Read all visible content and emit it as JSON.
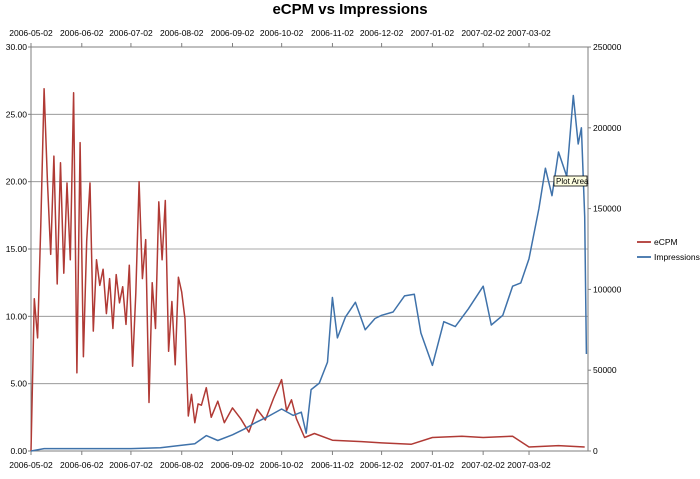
{
  "chart_data": {
    "type": "line",
    "title": "eCPM vs Impressions",
    "x_tick_labels": [
      "2006-05-02",
      "2006-06-02",
      "2006-07-02",
      "2006-08-02",
      "2006-09-02",
      "2006-10-02",
      "2006-11-02",
      "2006-12-02",
      "2007-01-02",
      "2007-02-02",
      "2007-03-02"
    ],
    "y_left": {
      "min": 0,
      "max": 30,
      "step": 5,
      "tick_labels": [
        "0.00",
        "5.00",
        "10.00",
        "15.00",
        "20.00",
        "25.00",
        "30.00"
      ]
    },
    "y_right": {
      "min": 0,
      "max": 250000,
      "step": 50000,
      "tick_labels": [
        "0",
        "50000",
        "100000",
        "150000",
        "200000",
        "250000"
      ]
    },
    "x_range": [
      "2006-05-02",
      "2007-04-07"
    ],
    "grid": "horizontal",
    "legend_position": "right",
    "series": [
      {
        "name": "eCPM",
        "axis": "left",
        "color": "#b03a35",
        "points": [
          [
            "2006-05-02",
            0.0
          ],
          [
            "2006-05-04",
            11.3
          ],
          [
            "2006-05-06",
            8.4
          ],
          [
            "2006-05-08",
            16.8
          ],
          [
            "2006-05-10",
            26.9
          ],
          [
            "2006-05-12",
            20.1
          ],
          [
            "2006-05-14",
            14.6
          ],
          [
            "2006-05-16",
            21.9
          ],
          [
            "2006-05-18",
            12.4
          ],
          [
            "2006-05-20",
            21.4
          ],
          [
            "2006-05-22",
            13.2
          ],
          [
            "2006-05-24",
            19.9
          ],
          [
            "2006-05-26",
            14.2
          ],
          [
            "2006-05-28",
            26.6
          ],
          [
            "2006-05-30",
            5.8
          ],
          [
            "2006-06-01",
            22.9
          ],
          [
            "2006-06-03",
            7.0
          ],
          [
            "2006-06-05",
            15.6
          ],
          [
            "2006-06-07",
            19.9
          ],
          [
            "2006-06-09",
            8.9
          ],
          [
            "2006-06-11",
            14.2
          ],
          [
            "2006-06-13",
            12.3
          ],
          [
            "2006-06-15",
            13.5
          ],
          [
            "2006-06-17",
            10.2
          ],
          [
            "2006-06-19",
            12.8
          ],
          [
            "2006-06-21",
            9.1
          ],
          [
            "2006-06-23",
            13.1
          ],
          [
            "2006-06-25",
            11.0
          ],
          [
            "2006-06-27",
            12.2
          ],
          [
            "2006-06-29",
            9.4
          ],
          [
            "2006-07-01",
            13.8
          ],
          [
            "2006-07-03",
            6.3
          ],
          [
            "2006-07-05",
            11.7
          ],
          [
            "2006-07-07",
            20.0
          ],
          [
            "2006-07-09",
            12.8
          ],
          [
            "2006-07-11",
            15.7
          ],
          [
            "2006-07-13",
            3.6
          ],
          [
            "2006-07-15",
            12.5
          ],
          [
            "2006-07-17",
            9.1
          ],
          [
            "2006-07-19",
            18.5
          ],
          [
            "2006-07-21",
            14.2
          ],
          [
            "2006-07-23",
            18.6
          ],
          [
            "2006-07-25",
            7.4
          ],
          [
            "2006-07-27",
            11.1
          ],
          [
            "2006-07-29",
            6.4
          ],
          [
            "2006-07-31",
            12.9
          ],
          [
            "2006-08-02",
            11.8
          ],
          [
            "2006-08-04",
            9.8
          ],
          [
            "2006-08-06",
            2.6
          ],
          [
            "2006-08-08",
            4.2
          ],
          [
            "2006-08-10",
            2.1
          ],
          [
            "2006-08-12",
            3.5
          ],
          [
            "2006-08-14",
            3.4
          ],
          [
            "2006-08-17",
            4.7
          ],
          [
            "2006-08-20",
            2.5
          ],
          [
            "2006-08-24",
            3.7
          ],
          [
            "2006-08-28",
            2.1
          ],
          [
            "2006-09-02",
            3.2
          ],
          [
            "2006-09-07",
            2.4
          ],
          [
            "2006-09-12",
            1.4
          ],
          [
            "2006-09-17",
            3.1
          ],
          [
            "2006-09-22",
            2.3
          ],
          [
            "2006-09-27",
            3.9
          ],
          [
            "2006-10-02",
            5.3
          ],
          [
            "2006-10-05",
            3.0
          ],
          [
            "2006-10-08",
            3.8
          ],
          [
            "2006-10-11",
            2.4
          ],
          [
            "2006-10-16",
            1.0
          ],
          [
            "2006-10-22",
            1.3
          ],
          [
            "2006-11-02",
            0.8
          ],
          [
            "2006-11-20",
            0.7
          ],
          [
            "2006-12-02",
            0.6
          ],
          [
            "2006-12-20",
            0.5
          ],
          [
            "2007-01-02",
            1.0
          ],
          [
            "2007-01-20",
            1.1
          ],
          [
            "2007-02-02",
            1.0
          ],
          [
            "2007-02-20",
            1.1
          ],
          [
            "2007-03-02",
            0.3
          ],
          [
            "2007-03-20",
            0.4
          ],
          [
            "2007-04-05",
            0.3
          ]
        ]
      },
      {
        "name": "Impressions",
        "axis": "right",
        "color": "#3f72aa",
        "points": [
          [
            "2006-05-02",
            0
          ],
          [
            "2006-05-10",
            1500
          ],
          [
            "2006-06-02",
            1500
          ],
          [
            "2006-07-02",
            1500
          ],
          [
            "2006-07-20",
            2000
          ],
          [
            "2006-08-02",
            3500
          ],
          [
            "2006-08-10",
            4500
          ],
          [
            "2006-08-17",
            9500
          ],
          [
            "2006-08-24",
            6500
          ],
          [
            "2006-09-02",
            10000
          ],
          [
            "2006-09-09",
            13500
          ],
          [
            "2006-09-16",
            17500
          ],
          [
            "2006-09-23",
            21000
          ],
          [
            "2006-10-02",
            26000
          ],
          [
            "2006-10-09",
            22000
          ],
          [
            "2006-10-14",
            24000
          ],
          [
            "2006-10-17",
            11000
          ],
          [
            "2006-10-20",
            38000
          ],
          [
            "2006-10-25",
            42000
          ],
          [
            "2006-10-30",
            55000
          ],
          [
            "2006-11-02",
            95000
          ],
          [
            "2006-11-05",
            70000
          ],
          [
            "2006-11-10",
            83000
          ],
          [
            "2006-11-16",
            92000
          ],
          [
            "2006-11-22",
            75000
          ],
          [
            "2006-11-28",
            82000
          ],
          [
            "2006-12-02",
            84000
          ],
          [
            "2006-12-09",
            86000
          ],
          [
            "2006-12-16",
            96000
          ],
          [
            "2006-12-22",
            97000
          ],
          [
            "2006-12-26",
            73000
          ],
          [
            "2007-01-02",
            53000
          ],
          [
            "2007-01-09",
            80000
          ],
          [
            "2007-01-16",
            77000
          ],
          [
            "2007-01-24",
            88000
          ],
          [
            "2007-02-02",
            102000
          ],
          [
            "2007-02-07",
            78000
          ],
          [
            "2007-02-14",
            84000
          ],
          [
            "2007-02-20",
            102000
          ],
          [
            "2007-02-25",
            104000
          ],
          [
            "2007-03-02",
            119000
          ],
          [
            "2007-03-08",
            150000
          ],
          [
            "2007-03-12",
            175000
          ],
          [
            "2007-03-16",
            158000
          ],
          [
            "2007-03-20",
            185000
          ],
          [
            "2007-03-25",
            170000
          ],
          [
            "2007-03-29",
            220000
          ],
          [
            "2007-04-01",
            190000
          ],
          [
            "2007-04-03",
            200000
          ],
          [
            "2007-04-05",
            145000
          ],
          [
            "2007-04-06",
            60000
          ]
        ]
      }
    ],
    "tooltip": "Plot Area"
  }
}
